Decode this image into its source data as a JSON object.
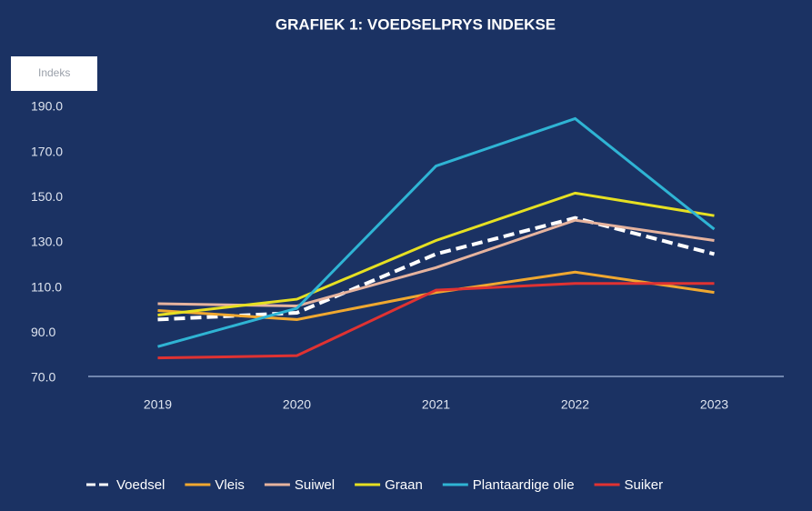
{
  "chart_data": {
    "type": "line",
    "title": "GRAFIEK 1: VOEDSELPRYS INDEKSE",
    "y_label": "Indeks",
    "categories": [
      "2019",
      "2020",
      "2021",
      "2022",
      "2023"
    ],
    "series": [
      {
        "name": "Voedsel",
        "color": "#ffffff",
        "dashed": true,
        "values": [
          96,
          99,
          125,
          141,
          125
        ]
      },
      {
        "name": "Vleis",
        "color": "#f0a830",
        "values": [
          100,
          96,
          108,
          117,
          108
        ]
      },
      {
        "name": "Suiwel",
        "color": "#e6b39e",
        "values": [
          103,
          102,
          119,
          140,
          131
        ]
      },
      {
        "name": "Graan",
        "color": "#e6e022",
        "values": [
          98,
          105,
          131,
          152,
          142
        ]
      },
      {
        "name": "Plantaardige olie",
        "color": "#2fb4d4",
        "values": [
          84,
          101,
          164,
          185,
          136
        ]
      },
      {
        "name": "Suiker",
        "color": "#e03232",
        "values": [
          79,
          80,
          109,
          112,
          112
        ]
      }
    ],
    "ylim": [
      70,
      190
    ],
    "yticks": [
      {
        "value": 70,
        "label": "70.0"
      },
      {
        "value": 90,
        "label": "90.0"
      },
      {
        "value": 110,
        "label": "110.0"
      },
      {
        "value": 130,
        "label": "130.0"
      },
      {
        "value": 150,
        "label": "150.0"
      },
      {
        "value": 170,
        "label": "170.0"
      },
      {
        "value": 190,
        "label": "190.0"
      }
    ],
    "legend": "bottom"
  }
}
